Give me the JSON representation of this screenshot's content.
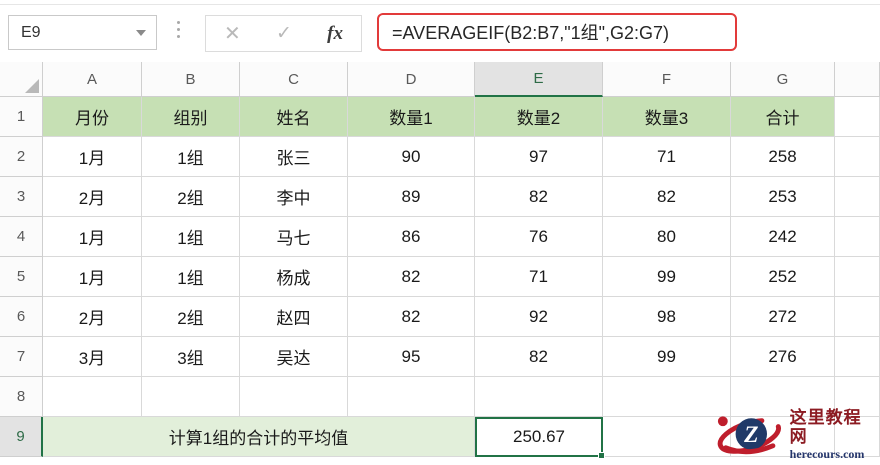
{
  "toolbar": {
    "name_box_value": "E9",
    "cancel_label": "✕",
    "enter_label": "✓",
    "fx_label": "fx",
    "formula": "=AVERAGEIF(B2:B7,\"1组\",G2:G7)"
  },
  "sheet": {
    "column_letters": [
      "A",
      "B",
      "C",
      "D",
      "E",
      "F",
      "G"
    ],
    "selected_column": "E",
    "selected_row": 9,
    "selected_cell": "E9",
    "header_row": [
      "月份",
      "组别",
      "姓名",
      "数量1",
      "数量2",
      "数量3",
      "合计"
    ],
    "data_rows": [
      {
        "row": 2,
        "cells": [
          "1月",
          "1组",
          "张三",
          "90",
          "97",
          "71",
          "258"
        ]
      },
      {
        "row": 3,
        "cells": [
          "2月",
          "2组",
          "李中",
          "89",
          "82",
          "82",
          "253"
        ]
      },
      {
        "row": 4,
        "cells": [
          "1月",
          "1组",
          "马七",
          "86",
          "76",
          "80",
          "242"
        ]
      },
      {
        "row": 5,
        "cells": [
          "1月",
          "1组",
          "杨成",
          "82",
          "71",
          "99",
          "252"
        ]
      },
      {
        "row": 6,
        "cells": [
          "2月",
          "2组",
          "赵四",
          "82",
          "92",
          "98",
          "272"
        ]
      },
      {
        "row": 7,
        "cells": [
          "3月",
          "3组",
          "吴达",
          "95",
          "82",
          "99",
          "276"
        ]
      }
    ],
    "empty_row": 8,
    "summary_row": 9,
    "summary_label": "计算1组的合计的平均值",
    "summary_value": "250.67"
  },
  "watermark": {
    "logo_letter": "Z",
    "title": "这里教程网",
    "domain": "herecours.com"
  },
  "colors": {
    "header_fill": "#C6E0B4",
    "summary_fill": "#E2EFDA",
    "selection_green": "#217346",
    "formula_border_red": "#E23A3A",
    "watermark_red": "#BF1E2C",
    "watermark_navy": "#203A68"
  }
}
